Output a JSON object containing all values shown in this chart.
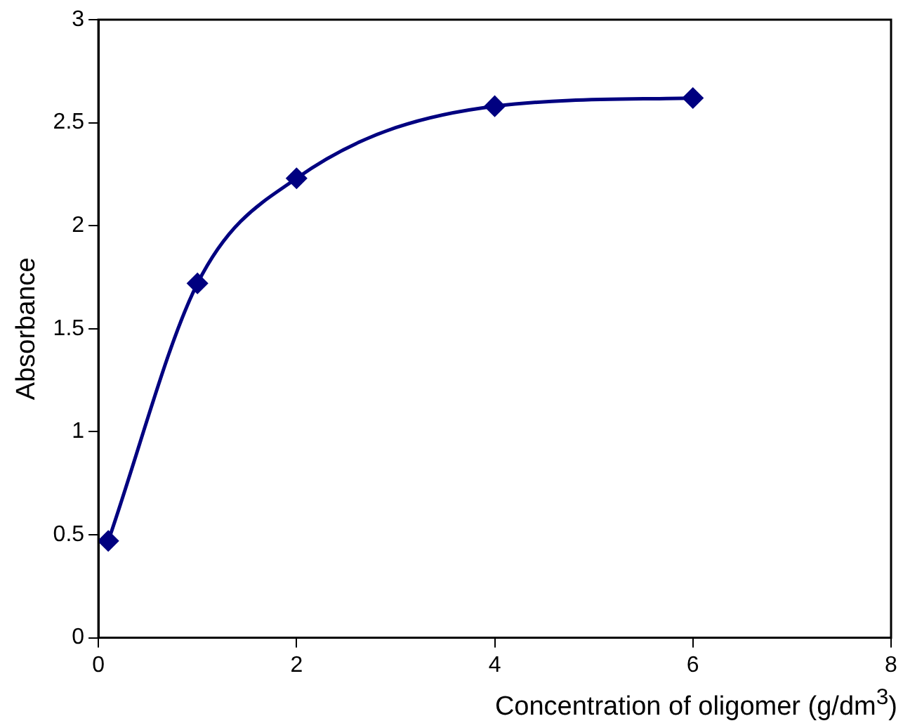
{
  "chart_data": {
    "type": "line",
    "xlabel": "Concentration of oligomer (g/dm$^{3}$)",
    "ylabel": "Absorbance",
    "x": [
      0.1,
      1,
      2,
      4,
      6
    ],
    "series": [
      {
        "color": "#000080",
        "values": [
          0.47,
          1.72,
          2.23,
          2.58,
          2.62
        ]
      }
    ],
    "xlim": [
      0,
      8
    ],
    "xticks": [
      0,
      2,
      4,
      6,
      8
    ],
    "ylim": [
      0,
      3
    ],
    "yticks": [
      0,
      0.5,
      1,
      1.5,
      2,
      2.5,
      3
    ],
    "grid": false,
    "legend": false,
    "marker": "diamond",
    "line_style": "solid"
  }
}
